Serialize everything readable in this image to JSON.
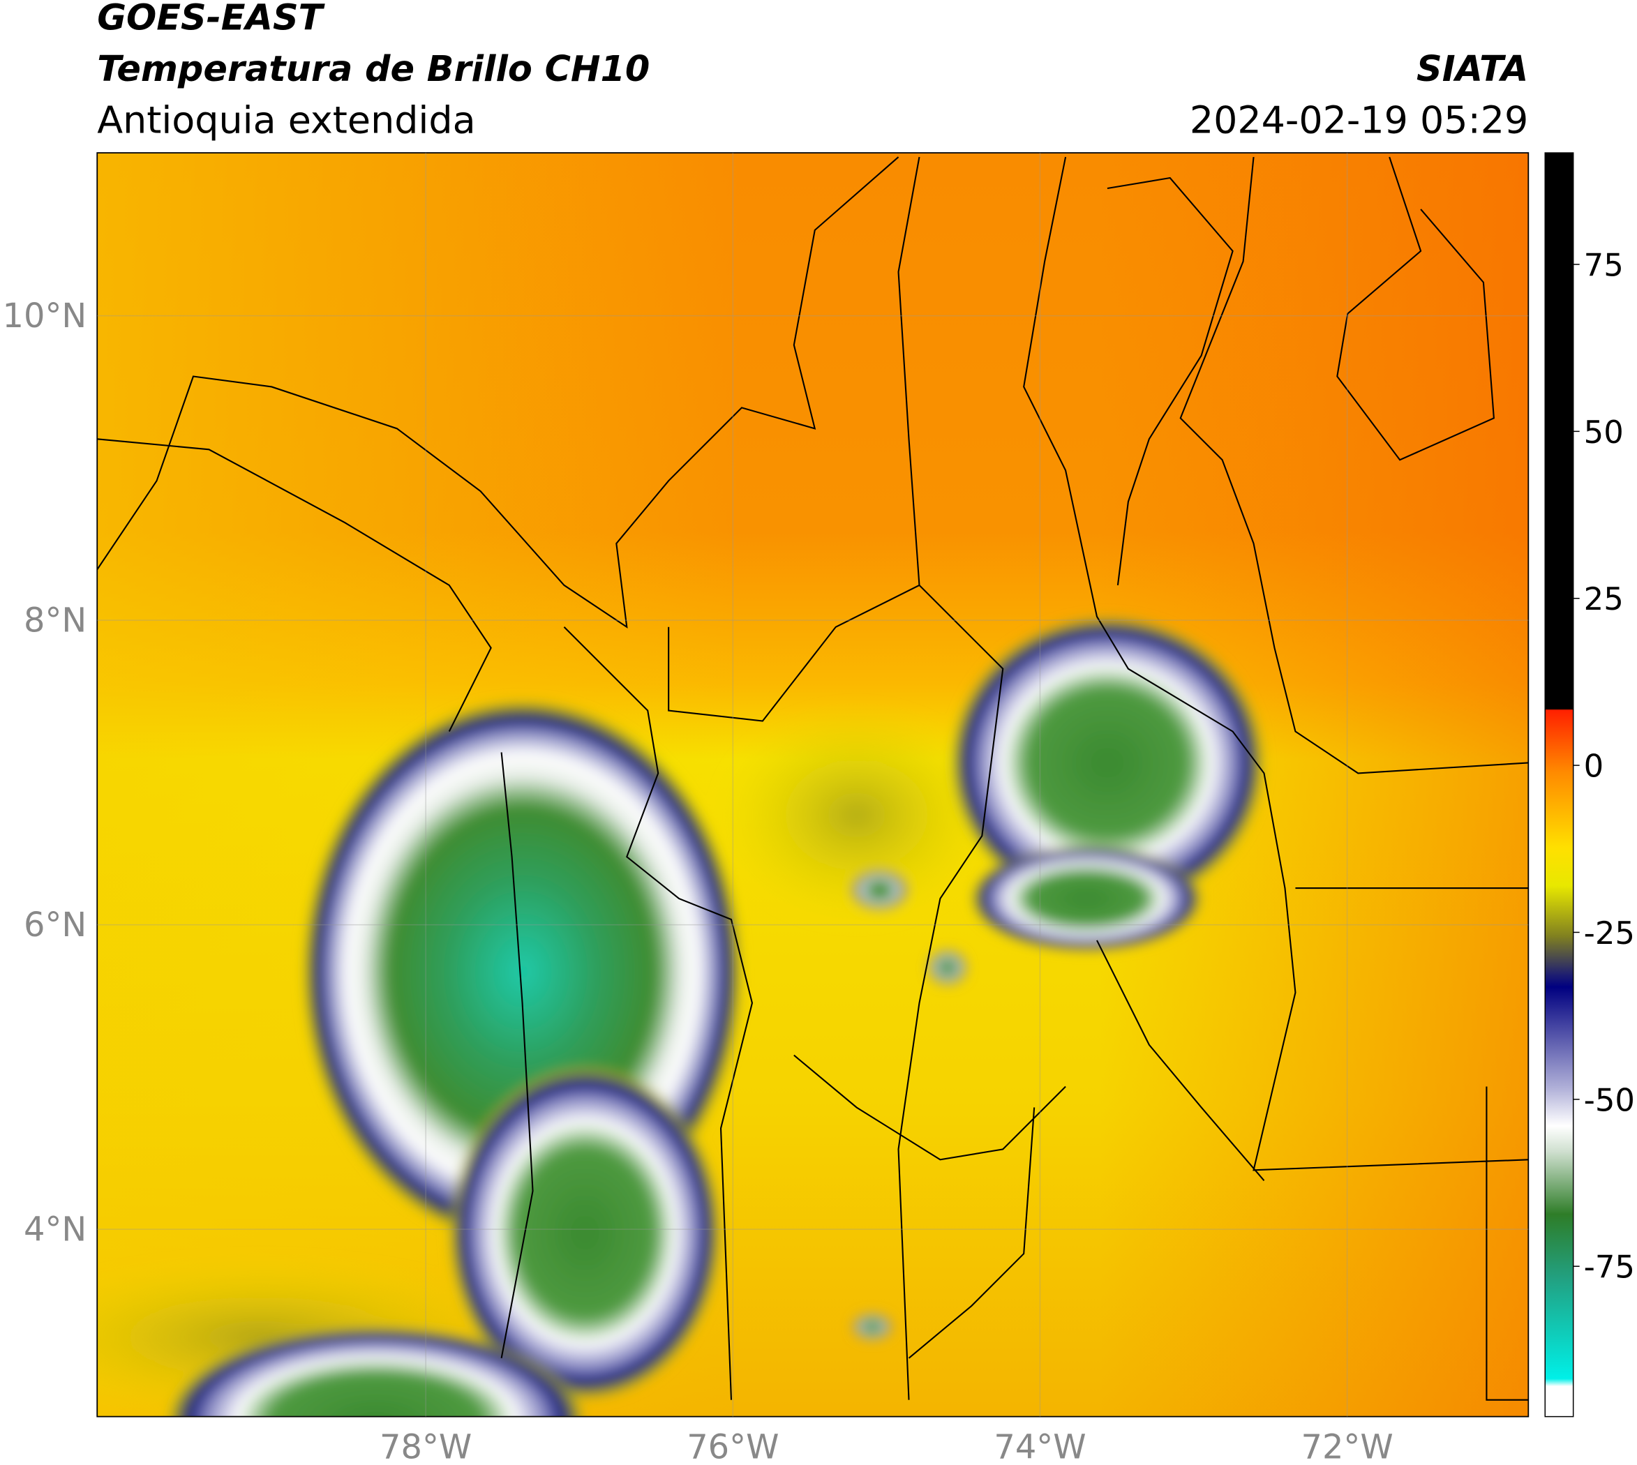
{
  "header": {
    "title": "GOES-EAST",
    "subtitle": "Temperatura de Brillo CH10",
    "region": "Antioquia extendida",
    "source": "SIATA",
    "datetime": "2024-02-19 05:29"
  },
  "map": {
    "lon_range": [
      -80.14,
      -70.82
    ],
    "lat_range": [
      2.77,
      11.07
    ],
    "lat_ticks": [
      {
        "value": 10,
        "label": "10°N"
      },
      {
        "value": 8,
        "label": "8°N"
      },
      {
        "value": 6,
        "label": "6°N"
      },
      {
        "value": 4,
        "label": "4°N"
      }
    ],
    "lon_ticks": [
      {
        "value": -78,
        "label": "78°W"
      },
      {
        "value": -76,
        "label": "76°W"
      },
      {
        "value": -74,
        "label": "74°W"
      },
      {
        "value": -72,
        "label": "72°W"
      }
    ]
  },
  "colorbar": {
    "range": [
      -97.5,
      91.7
    ],
    "ticks": [
      75,
      50,
      25,
      0,
      -25,
      -50,
      -75
    ]
  }
}
